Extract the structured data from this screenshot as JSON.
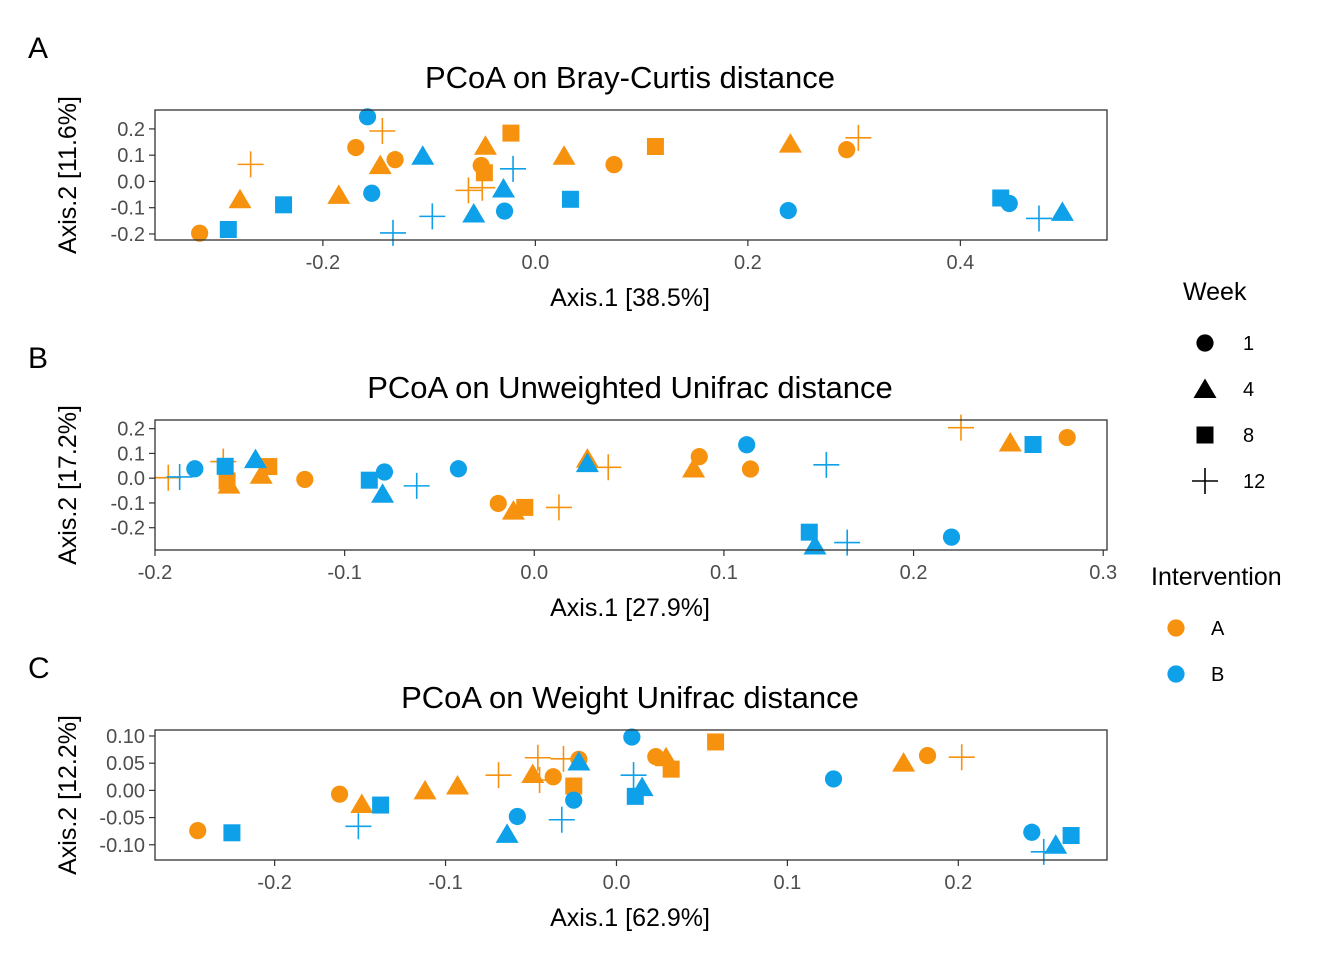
{
  "colors": {
    "A": "#F7920F",
    "B": "#0EA0E8",
    "legend_grey": "#000000"
  },
  "legend": {
    "week_title": "Week",
    "week_items": [
      {
        "label": "1",
        "shape": "circle"
      },
      {
        "label": "4",
        "shape": "triangle"
      },
      {
        "label": "8",
        "shape": "square"
      },
      {
        "label": "12",
        "shape": "plus"
      }
    ],
    "intervention_title": "Intervention",
    "intervention_items": [
      {
        "label": "A",
        "color_key": "A"
      },
      {
        "label": "B",
        "color_key": "B"
      }
    ]
  },
  "chart_data": [
    {
      "type": "scatter",
      "tag": "A",
      "title": "PCoA on Bray-Curtis distance",
      "xlabel": "Axis.1   [38.5%]",
      "ylabel": "Axis.2   [11.6%]",
      "xlim": [
        -0.358,
        0.538
      ],
      "ylim": [
        -0.223,
        0.272
      ],
      "xticks": [
        -0.2,
        0.0,
        0.2,
        0.4
      ],
      "xtick_labels": [
        "-0.2",
        "0.0",
        "0.2",
        "0.4"
      ],
      "yticks": [
        -0.2,
        -0.1,
        0.0,
        0.1,
        0.2
      ],
      "ytick_labels": [
        "-0.2",
        "-0.1",
        "0.0",
        "0.1",
        "0.2"
      ],
      "points": [
        {
          "x": -0.316,
          "y": -0.197,
          "week": "1",
          "group": "A"
        },
        {
          "x": -0.169,
          "y": 0.129,
          "week": "1",
          "group": "A"
        },
        {
          "x": -0.132,
          "y": 0.083,
          "week": "1",
          "group": "A"
        },
        {
          "x": -0.051,
          "y": 0.061,
          "week": "1",
          "group": "A"
        },
        {
          "x": 0.074,
          "y": 0.064,
          "week": "1",
          "group": "A"
        },
        {
          "x": 0.293,
          "y": 0.121,
          "week": "1",
          "group": "A"
        },
        {
          "x": -0.278,
          "y": -0.068,
          "week": "4",
          "group": "A"
        },
        {
          "x": -0.185,
          "y": -0.051,
          "week": "4",
          "group": "A"
        },
        {
          "x": -0.146,
          "y": 0.062,
          "week": "4",
          "group": "A"
        },
        {
          "x": -0.047,
          "y": 0.136,
          "week": "4",
          "group": "A"
        },
        {
          "x": 0.027,
          "y": 0.098,
          "week": "4",
          "group": "A"
        },
        {
          "x": 0.24,
          "y": 0.144,
          "week": "4",
          "group": "A"
        },
        {
          "x": -0.048,
          "y": 0.033,
          "week": "8",
          "group": "A"
        },
        {
          "x": -0.023,
          "y": 0.184,
          "week": "8",
          "group": "A"
        },
        {
          "x": 0.113,
          "y": 0.133,
          "week": "8",
          "group": "A"
        },
        {
          "x": -0.268,
          "y": 0.065,
          "week": "12",
          "group": "A"
        },
        {
          "x": -0.144,
          "y": 0.192,
          "week": "12",
          "group": "A"
        },
        {
          "x": -0.063,
          "y": -0.034,
          "week": "12",
          "group": "A"
        },
        {
          "x": -0.05,
          "y": -0.024,
          "week": "12",
          "group": "A"
        },
        {
          "x": 0.304,
          "y": 0.166,
          "week": "12",
          "group": "A"
        },
        {
          "x": -0.158,
          "y": 0.246,
          "week": "1",
          "group": "B"
        },
        {
          "x": -0.154,
          "y": -0.045,
          "week": "1",
          "group": "B"
        },
        {
          "x": -0.029,
          "y": -0.113,
          "week": "1",
          "group": "B"
        },
        {
          "x": 0.238,
          "y": -0.111,
          "week": "1",
          "group": "B"
        },
        {
          "x": 0.446,
          "y": -0.084,
          "week": "1",
          "group": "B"
        },
        {
          "x": -0.106,
          "y": 0.098,
          "week": "4",
          "group": "B"
        },
        {
          "x": -0.058,
          "y": -0.122,
          "week": "4",
          "group": "B"
        },
        {
          "x": -0.03,
          "y": -0.027,
          "week": "4",
          "group": "B"
        },
        {
          "x": 0.496,
          "y": -0.116,
          "week": "4",
          "group": "B"
        },
        {
          "x": -0.289,
          "y": -0.183,
          "week": "8",
          "group": "B"
        },
        {
          "x": -0.237,
          "y": -0.089,
          "week": "8",
          "group": "B"
        },
        {
          "x": 0.033,
          "y": -0.068,
          "week": "8",
          "group": "B"
        },
        {
          "x": 0.438,
          "y": -0.063,
          "week": "8",
          "group": "B"
        },
        {
          "x": -0.134,
          "y": -0.196,
          "week": "12",
          "group": "B"
        },
        {
          "x": -0.097,
          "y": -0.133,
          "week": "12",
          "group": "B"
        },
        {
          "x": -0.021,
          "y": 0.048,
          "week": "12",
          "group": "B"
        },
        {
          "x": 0.474,
          "y": -0.141,
          "week": "12",
          "group": "B"
        }
      ]
    },
    {
      "type": "scatter",
      "tag": "B",
      "title": "PCoA on Unweighted Unifrac distance",
      "xlabel": "Axis.1   [27.9%]",
      "ylabel": "Axis.2   [17.2%]",
      "xlim": [
        -0.2,
        0.302
      ],
      "ylim": [
        -0.29,
        0.235
      ],
      "xticks": [
        -0.2,
        -0.1,
        0.0,
        0.1,
        0.2,
        0.3
      ],
      "xtick_labels": [
        "-0.2",
        "-0.1",
        "0.0",
        "0.1",
        "0.2",
        "0.3"
      ],
      "yticks": [
        -0.2,
        -0.1,
        0.0,
        0.1,
        0.2
      ],
      "ytick_labels": [
        "-0.2",
        "-0.1",
        "0.0",
        "0.1",
        "0.2"
      ],
      "points": [
        {
          "x": -0.121,
          "y": -0.005,
          "week": "1",
          "group": "A"
        },
        {
          "x": -0.019,
          "y": -0.102,
          "week": "1",
          "group": "A"
        },
        {
          "x": 0.087,
          "y": 0.087,
          "week": "1",
          "group": "A"
        },
        {
          "x": 0.114,
          "y": 0.037,
          "week": "1",
          "group": "A"
        },
        {
          "x": 0.281,
          "y": 0.164,
          "week": "1",
          "group": "A"
        },
        {
          "x": -0.161,
          "y": -0.026,
          "week": "4",
          "group": "A"
        },
        {
          "x": -0.144,
          "y": 0.014,
          "week": "4",
          "group": "A"
        },
        {
          "x": -0.011,
          "y": -0.131,
          "week": "4",
          "group": "A"
        },
        {
          "x": 0.028,
          "y": 0.079,
          "week": "4",
          "group": "A"
        },
        {
          "x": 0.084,
          "y": 0.039,
          "week": "4",
          "group": "A"
        },
        {
          "x": 0.251,
          "y": 0.144,
          "week": "4",
          "group": "A"
        },
        {
          "x": -0.162,
          "y": -0.011,
          "week": "8",
          "group": "A"
        },
        {
          "x": -0.14,
          "y": 0.047,
          "week": "8",
          "group": "A"
        },
        {
          "x": -0.005,
          "y": -0.118,
          "week": "8",
          "group": "A"
        },
        {
          "x": -0.193,
          "y": 0.002,
          "week": "12",
          "group": "A"
        },
        {
          "x": -0.164,
          "y": 0.067,
          "week": "12",
          "group": "A"
        },
        {
          "x": 0.013,
          "y": -0.118,
          "week": "12",
          "group": "A"
        },
        {
          "x": 0.039,
          "y": 0.044,
          "week": "12",
          "group": "A"
        },
        {
          "x": 0.225,
          "y": 0.204,
          "week": "12",
          "group": "A"
        },
        {
          "x": -0.179,
          "y": 0.038,
          "week": "1",
          "group": "B"
        },
        {
          "x": -0.079,
          "y": 0.025,
          "week": "1",
          "group": "B"
        },
        {
          "x": -0.04,
          "y": 0.038,
          "week": "1",
          "group": "B"
        },
        {
          "x": 0.112,
          "y": 0.135,
          "week": "1",
          "group": "B"
        },
        {
          "x": 0.22,
          "y": -0.238,
          "week": "1",
          "group": "B"
        },
        {
          "x": -0.147,
          "y": 0.077,
          "week": "4",
          "group": "B"
        },
        {
          "x": -0.08,
          "y": -0.063,
          "week": "4",
          "group": "B"
        },
        {
          "x": 0.028,
          "y": 0.061,
          "week": "4",
          "group": "B"
        },
        {
          "x": 0.148,
          "y": -0.272,
          "week": "4",
          "group": "B"
        },
        {
          "x": -0.163,
          "y": 0.048,
          "week": "8",
          "group": "B"
        },
        {
          "x": -0.087,
          "y": -0.008,
          "week": "8",
          "group": "B"
        },
        {
          "x": 0.145,
          "y": -0.218,
          "week": "8",
          "group": "B"
        },
        {
          "x": 0.263,
          "y": 0.136,
          "week": "8",
          "group": "B"
        },
        {
          "x": -0.187,
          "y": 0.005,
          "week": "12",
          "group": "B"
        },
        {
          "x": -0.062,
          "y": -0.031,
          "week": "12",
          "group": "B"
        },
        {
          "x": 0.154,
          "y": 0.054,
          "week": "12",
          "group": "B"
        },
        {
          "x": 0.165,
          "y": -0.26,
          "week": "12",
          "group": "B"
        }
      ]
    },
    {
      "type": "scatter",
      "tag": "C",
      "title": "PCoA on Weight Unifrac distance",
      "xlabel": "Axis.1   [62.9%]",
      "ylabel": "Axis.2   [12.2%]",
      "xlim": [
        -0.27,
        0.287
      ],
      "ylim": [
        -0.128,
        0.111
      ],
      "xticks": [
        -0.2,
        -0.1,
        0.0,
        0.1,
        0.2
      ],
      "xtick_labels": [
        "-0.2",
        "-0.1",
        "0.0",
        "0.1",
        "0.2"
      ],
      "yticks": [
        -0.1,
        -0.05,
        0.0,
        0.05,
        0.1
      ],
      "ytick_labels": [
        "-0.10",
        "-0.05",
        "0.00",
        "0.05",
        "0.10"
      ],
      "points": [
        {
          "x": -0.245,
          "y": -0.074,
          "week": "1",
          "group": "A"
        },
        {
          "x": -0.162,
          "y": -0.007,
          "week": "1",
          "group": "A"
        },
        {
          "x": -0.037,
          "y": 0.025,
          "week": "1",
          "group": "A"
        },
        {
          "x": -0.022,
          "y": 0.057,
          "week": "1",
          "group": "A"
        },
        {
          "x": 0.023,
          "y": 0.062,
          "week": "1",
          "group": "A"
        },
        {
          "x": 0.182,
          "y": 0.064,
          "week": "1",
          "group": "A"
        },
        {
          "x": -0.149,
          "y": -0.025,
          "week": "4",
          "group": "A"
        },
        {
          "x": -0.112,
          "y": 0.0,
          "week": "4",
          "group": "A"
        },
        {
          "x": -0.093,
          "y": 0.009,
          "week": "4",
          "group": "A"
        },
        {
          "x": -0.049,
          "y": 0.03,
          "week": "4",
          "group": "A"
        },
        {
          "x": 0.029,
          "y": 0.061,
          "week": "4",
          "group": "A"
        },
        {
          "x": 0.168,
          "y": 0.051,
          "week": "4",
          "group": "A"
        },
        {
          "x": -0.025,
          "y": 0.008,
          "week": "8",
          "group": "A"
        },
        {
          "x": 0.032,
          "y": 0.039,
          "week": "8",
          "group": "A"
        },
        {
          "x": 0.058,
          "y": 0.089,
          "week": "8",
          "group": "A"
        },
        {
          "x": -0.069,
          "y": 0.028,
          "week": "12",
          "group": "A"
        },
        {
          "x": -0.046,
          "y": 0.06,
          "week": "12",
          "group": "A"
        },
        {
          "x": -0.045,
          "y": 0.019,
          "week": "12",
          "group": "A"
        },
        {
          "x": -0.031,
          "y": 0.058,
          "week": "12",
          "group": "A"
        },
        {
          "x": 0.202,
          "y": 0.061,
          "week": "12",
          "group": "A"
        },
        {
          "x": -0.058,
          "y": -0.048,
          "week": "1",
          "group": "B"
        },
        {
          "x": -0.025,
          "y": -0.018,
          "week": "1",
          "group": "B"
        },
        {
          "x": 0.009,
          "y": 0.098,
          "week": "1",
          "group": "B"
        },
        {
          "x": 0.127,
          "y": 0.021,
          "week": "1",
          "group": "B"
        },
        {
          "x": 0.243,
          "y": -0.077,
          "week": "1",
          "group": "B"
        },
        {
          "x": -0.064,
          "y": -0.08,
          "week": "4",
          "group": "B"
        },
        {
          "x": -0.022,
          "y": 0.053,
          "week": "4",
          "group": "B"
        },
        {
          "x": 0.015,
          "y": 0.006,
          "week": "4",
          "group": "B"
        },
        {
          "x": 0.257,
          "y": -0.1,
          "week": "4",
          "group": "B"
        },
        {
          "x": -0.225,
          "y": -0.078,
          "week": "8",
          "group": "B"
        },
        {
          "x": -0.138,
          "y": -0.027,
          "week": "8",
          "group": "B"
        },
        {
          "x": 0.011,
          "y": -0.011,
          "week": "8",
          "group": "B"
        },
        {
          "x": 0.266,
          "y": -0.083,
          "week": "8",
          "group": "B"
        },
        {
          "x": -0.151,
          "y": -0.066,
          "week": "12",
          "group": "B"
        },
        {
          "x": -0.032,
          "y": -0.054,
          "week": "12",
          "group": "B"
        },
        {
          "x": 0.01,
          "y": 0.028,
          "week": "12",
          "group": "B"
        },
        {
          "x": 0.25,
          "y": -0.113,
          "week": "12",
          "group": "B"
        }
      ]
    }
  ]
}
